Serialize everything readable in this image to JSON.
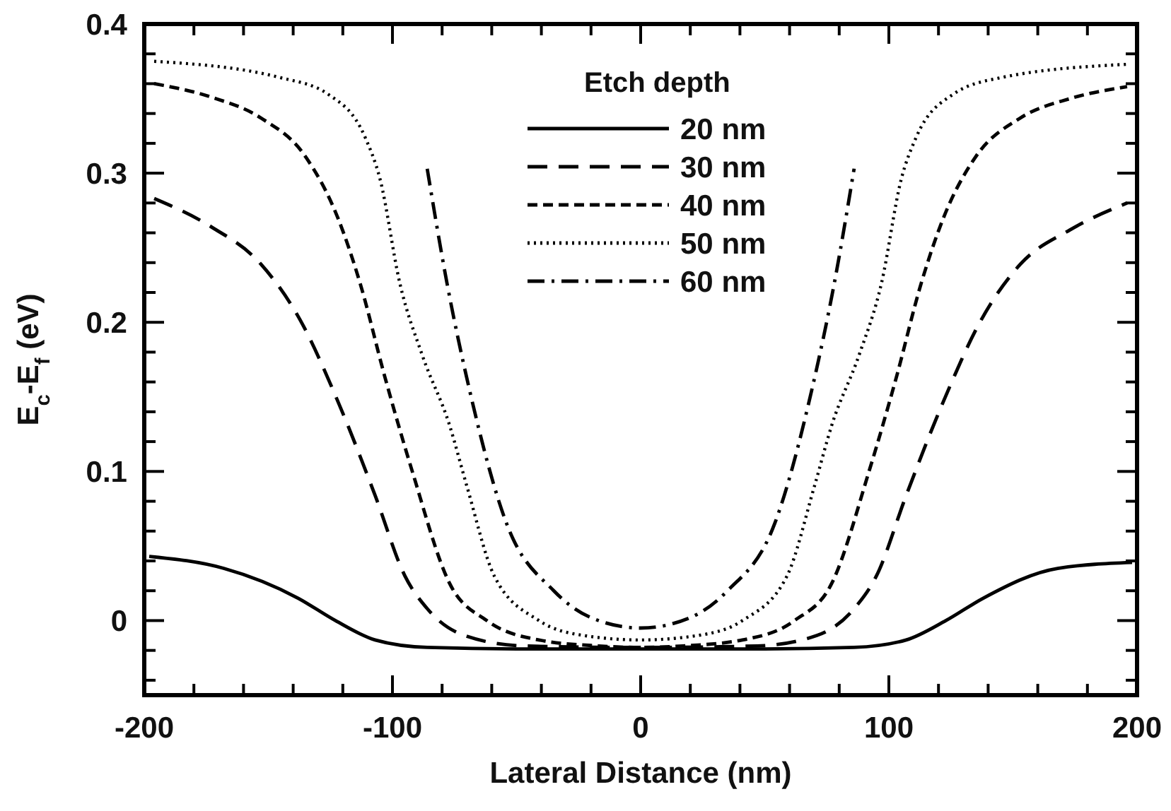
{
  "chart_data": {
    "type": "line",
    "xlabel": "Lateral Distance (nm)",
    "ylabel": "E$_{c}$-E$_{f}$ (eV)",
    "legend_title": "Etch depth",
    "legend": "top",
    "xlim": [
      -200,
      200
    ],
    "ylim": [
      -0.05,
      0.4
    ],
    "xticks": [
      -200,
      {
        "value": -180,
        "label": null
      },
      {
        "value": -160,
        "label": null
      },
      {
        "value": -140,
        "label": null
      },
      {
        "value": -120,
        "label": null
      },
      -100,
      {
        "value": -80,
        "label": null
      },
      {
        "value": -60,
        "label": null
      },
      {
        "value": -40,
        "label": null
      },
      {
        "value": -20,
        "label": null
      },
      0,
      {
        "value": 20,
        "label": null
      },
      {
        "value": 40,
        "label": null
      },
      {
        "value": 60,
        "label": null
      },
      {
        "value": 80,
        "label": null
      },
      100,
      {
        "value": 120,
        "label": null
      },
      {
        "value": 140,
        "label": null
      },
      {
        "value": 160,
        "label": null
      },
      {
        "value": 180,
        "label": null
      },
      200
    ],
    "yticks": [
      {
        "value": -0.04,
        "label": null
      },
      {
        "value": -0.02,
        "label": null
      },
      0,
      {
        "value": 0.02,
        "label": null
      },
      {
        "value": 0.04,
        "label": null
      },
      {
        "value": 0.06,
        "label": null
      },
      {
        "value": 0.08,
        "label": null
      },
      0.1,
      {
        "value": 0.12,
        "label": null
      },
      {
        "value": 0.14,
        "label": null
      },
      {
        "value": 0.16,
        "label": null
      },
      {
        "value": 0.18,
        "label": null
      },
      0.2,
      {
        "value": 0.22,
        "label": null
      },
      {
        "value": 0.24,
        "label": null
      },
      {
        "value": 0.26,
        "label": null
      },
      {
        "value": 0.28,
        "label": null
      },
      0.3,
      {
        "value": 0.32,
        "label": null
      },
      {
        "value": 0.34,
        "label": null
      },
      {
        "value": 0.36,
        "label": null
      },
      {
        "value": 0.38,
        "label": null
      },
      0.4
    ],
    "series": [
      {
        "name": "20 nm",
        "color": "#000000",
        "line_style": "solid",
        "x": [
          -198,
          -168,
          -138,
          -123,
          -107,
          -86,
          -50,
          0,
          50,
          86,
          107,
          123,
          138,
          168,
          198
        ],
        "values": [
          0.043,
          0.035,
          0.015,
          0,
          -0.013,
          -0.018,
          -0.019,
          -0.019,
          -0.019,
          -0.018,
          -0.013,
          0,
          0.015,
          0.035,
          0.039
        ]
      },
      {
        "name": "30 nm",
        "color": "#000000",
        "line_style": "dashed",
        "x": [
          -196,
          -173,
          -153,
          -137,
          -122,
          -107,
          -95,
          -86,
          -71,
          -47,
          0,
          47,
          71,
          86,
          95,
          107,
          122,
          137,
          153,
          173,
          196
        ],
        "values": [
          0.283,
          0.264,
          0.239,
          0.201,
          0.147,
          0.084,
          0.03,
          0.008,
          -0.01,
          -0.017,
          -0.018,
          -0.017,
          -0.01,
          0.008,
          0.03,
          0.084,
          0.147,
          0.201,
          0.239,
          0.262,
          0.28
        ]
      },
      {
        "name": "40 nm",
        "color": "#000000",
        "line_style": "shortdash",
        "x": [
          -196,
          -173,
          -153,
          -135,
          -122,
          -113,
          -103,
          -92,
          -77,
          -62,
          -41,
          -17,
          0,
          17,
          41,
          62,
          77,
          92,
          103,
          113,
          122,
          135,
          153,
          173,
          196
        ],
        "values": [
          0.36,
          0.351,
          0.337,
          0.311,
          0.27,
          0.226,
          0.163,
          0.1,
          0.025,
          0,
          -0.013,
          -0.017,
          -0.018,
          -0.017,
          -0.013,
          0,
          0.025,
          0.1,
          0.163,
          0.226,
          0.27,
          0.311,
          0.337,
          0.35,
          0.358
        ]
      },
      {
        "name": "50 nm",
        "color": "#000000",
        "line_style": "dotted",
        "x": [
          -196,
          -145,
          -126,
          -111,
          -105,
          -97,
          -88,
          -77,
          -70,
          -59,
          -41,
          -23,
          0,
          23,
          41,
          59,
          70,
          77,
          88,
          97,
          105,
          111,
          126,
          145,
          196
        ],
        "values": [
          0.375,
          0.364,
          0.353,
          0.324,
          0.296,
          0.226,
          0.178,
          0.131,
          0.09,
          0.03,
          0,
          -0.01,
          -0.013,
          -0.01,
          0,
          0.03,
          0.09,
          0.131,
          0.178,
          0.226,
          0.296,
          0.324,
          0.353,
          0.364,
          0.373
        ]
      },
      {
        "name": "60 nm",
        "color": "#000000",
        "line_style": "dashdot",
        "x": [
          -86,
          -78,
          -69,
          -54,
          -35,
          -20,
          0,
          20,
          35,
          54,
          69,
          78,
          86
        ],
        "values": [
          0.303,
          0.226,
          0.155,
          0.065,
          0.02,
          0.002,
          -0.005,
          0.002,
          0.02,
          0.065,
          0.155,
          0.226,
          0.303
        ]
      }
    ]
  }
}
